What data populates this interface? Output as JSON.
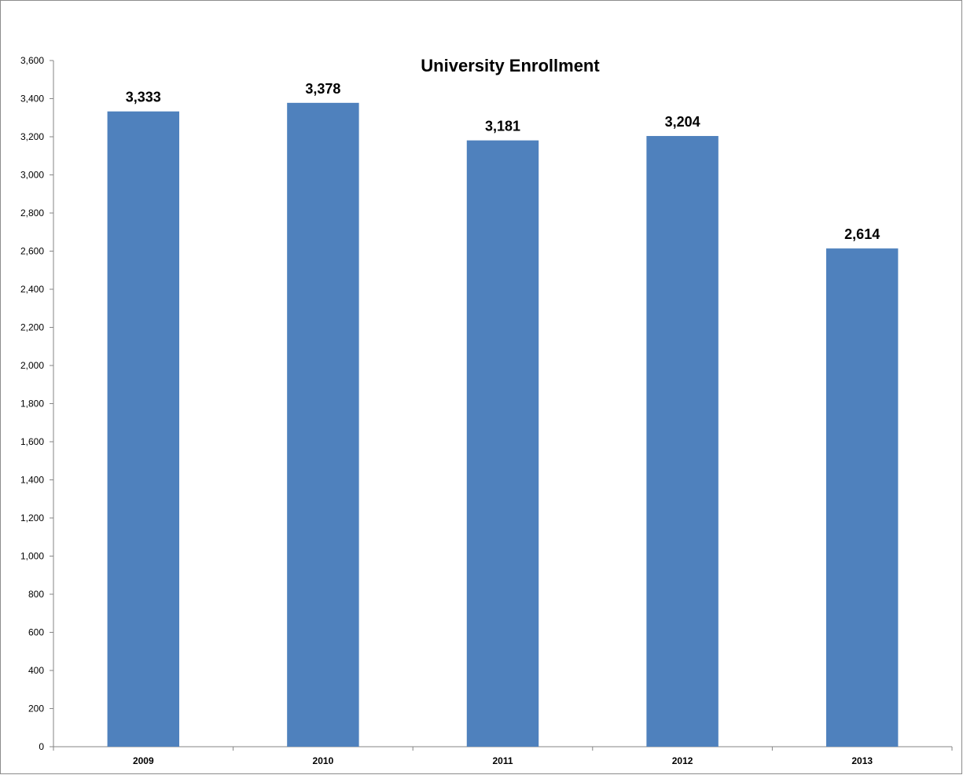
{
  "chart_data": {
    "type": "bar",
    "title": "University Enrollment",
    "xlabel": "",
    "ylabel": "",
    "categories": [
      "2009",
      "2010",
      "2011",
      "2012",
      "2013"
    ],
    "values": [
      3333,
      3378,
      3181,
      3204,
      2614
    ],
    "data_labels": [
      "3,333",
      "3,378",
      "3,181",
      "3,204",
      "2,614"
    ],
    "ylim": [
      0,
      3600
    ],
    "y_ticks": [
      0,
      200,
      400,
      600,
      800,
      1000,
      1200,
      1400,
      1600,
      1800,
      2000,
      2200,
      2400,
      2600,
      2800,
      3000,
      3200,
      3400,
      3600
    ],
    "y_tick_labels": [
      "0",
      "200",
      "400",
      "600",
      "800",
      "1,000",
      "1,200",
      "1,400",
      "1,600",
      "1,800",
      "2,000",
      "2,200",
      "2,400",
      "2,600",
      "2,800",
      "3,000",
      "3,200",
      "3,400",
      "3,600"
    ],
    "grid": false,
    "legend": "none",
    "bar_color": "#4f81bd",
    "axis_color": "#868686"
  }
}
